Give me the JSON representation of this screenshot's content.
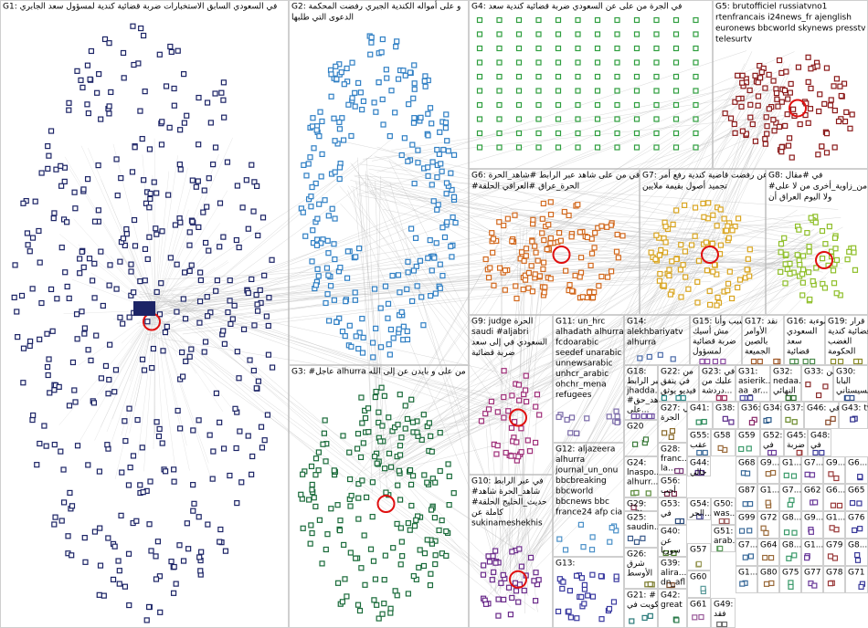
{
  "groups": [
    {
      "label": [
        "G1: في السعودي السابق الاستخبارات ضربة قضائية كندية لمسؤول سعد الجابري"
      ]
    },
    {
      "label": [
        "G2: و على أمواله الكندية الجبري رفضت المحكمة",
        "الدعوى التي طلبها"
      ]
    },
    {
      "label": [
        "G3: #عاجل alhurra في من على و بايدن عن إلى الله"
      ]
    },
    {
      "label": [
        "G4: في الجرة من على عن السعودي ضربة قضائية كندية سعد"
      ]
    },
    {
      "label": [
        "G5: brutofficiel russiatvno1",
        "rtenfrancais i24news_fr ajenglish",
        "euronews bbcworld skynews presstv",
        "telesurtv"
      ]
    },
    {
      "label": [
        "G6: في من على شاهد عبر الرابط #شاهد_الحرة",
        "#الحرة_عراق #العراقي الحلقة"
      ]
    },
    {
      "label": [
        "G7: عن رفضت قاضية كندية رفع أمر",
        "تجميد أصول بقيمة ملايين"
      ]
    },
    {
      "label": [
        "G8: في #مقال",
        "#من_زاوية_أخرى من لا على",
        "ولا اليوم العراق أن"
      ]
    },
    {
      "label": [
        "G9: judge الحرة",
        "saudi #aljabri",
        "السعودي في إلى سعد",
        "ضربة قضائية"
      ]
    },
    {
      "label": [
        "G10: في عبر الرابط",
        "#شاهد_الحرة شاهد",
        "#حديث_الخليج الحلقة",
        "كاملة عن",
        "sukinameshekhis"
      ]
    },
    {
      "label": [
        "G11: un_hrc",
        "alhadath alhurra",
        "fcdoarabic",
        "seedef unarabic",
        "unnewsarabic",
        "unhcr_arabic",
        "ohchr_mena",
        "refugees"
      ]
    },
    {
      "label": [
        "G12: aljazeera",
        "alhurra",
        "journal_un_onu",
        "bbcbreaking",
        "bbcworld",
        "bbcnews bbc",
        "france24 afp cia"
      ]
    },
    {
      "label": [
        "G13:"
      ]
    },
    {
      "label": [
        "G14:",
        "alekhbariyatv",
        "alhurra"
      ]
    },
    {
      "label": [
        "G15: سبب وأنا",
        "مش أسيك",
        "ضربة قضائية",
        "لمسؤول"
      ]
    },
    {
      "label": [
        "G17: نقد",
        "الأوامر",
        "بالصين",
        "الجميعة"
      ]
    },
    {
      "label": [
        "G16: ضوءبة",
        "السعودي",
        "سعد",
        "قضائية"
      ]
    },
    {
      "label": [
        "G19: قرار",
        "قضائية كندية",
        "الغضب",
        "الحكومة"
      ]
    },
    {
      "label": [
        "G18:",
        "عبر الرابط",
        "jhadda...",
        "#شاهد_حق",
        "على..."
      ]
    },
    {
      "label": [
        "G22: من",
        "في يتفق",
        "فيديو يوثق"
      ]
    },
    {
      "label": [
        "G23: في",
        "عليك من",
        "دردشة..."
      ]
    },
    {
      "label": [
        "G31:",
        "asierik...",
        "aa_ar..."
      ]
    },
    {
      "label": [
        "G32:",
        "nedaa...",
        "النهائي"
      ]
    },
    {
      "label": [
        "G33: من"
      ]
    },
    {
      "label": [
        "G30:",
        "البابا",
        "والسيستاني"
      ]
    },
    {
      "label": [
        "G27: في",
        "الجرة"
      ]
    },
    {
      "label": [
        "G41:"
      ]
    },
    {
      "label": [
        "G38:"
      ]
    },
    {
      "label": [
        "G36: من"
      ]
    },
    {
      "label": [
        "G34:"
      ]
    },
    {
      "label": [
        "G37: في"
      ]
    },
    {
      "label": [
        "G46: في"
      ]
    },
    {
      "label": [
        "G43: tv"
      ]
    },
    {
      "label": [
        "G20"
      ]
    },
    {
      "label": [
        "G28:",
        "franc...",
        "la..."
      ]
    },
    {
      "label": [
        "G55:",
        "عقب"
      ]
    },
    {
      "label": [
        "G58"
      ]
    },
    {
      "label": [
        "G59"
      ]
    },
    {
      "label": [
        "G52:",
        "في"
      ]
    },
    {
      "label": [
        "G45:",
        "ضربة"
      ]
    },
    {
      "label": [
        "G48:",
        "في"
      ]
    },
    {
      "label": [
        "G24:",
        "lnaspo...",
        "alhurr..."
      ]
    },
    {
      "label": [
        "G29:",
        "m3ta..."
      ]
    },
    {
      "label": [
        "G25:",
        "saudin..."
      ]
    },
    {
      "label": [
        "G26:",
        "شرق",
        "الأوسط"
      ]
    },
    {
      "label": [
        "G21: #",
        "الكويت في"
      ]
    },
    {
      "label": [
        "G44:",
        "حالي"
      ]
    },
    {
      "label": [
        "G56:",
        "أحب"
      ]
    },
    {
      "label": [
        "G53:",
        "في"
      ]
    },
    {
      "label": [
        "G40:",
        "عن",
        "سوريا"
      ]
    },
    {
      "label": [
        "G39:",
        "alira...",
        "dn_afl"
      ]
    },
    {
      "label": [
        "G42:",
        "great"
      ]
    },
    {
      "label": [
        "G54:",
        "الحر..."
      ]
    },
    {
      "label": [
        "G50:",
        "was..."
      ]
    },
    {
      "label": [
        "G51:",
        "arab..."
      ]
    },
    {
      "label": [
        "G57"
      ]
    },
    {
      "label": [
        "G60"
      ]
    },
    {
      "label": [
        "G61"
      ]
    },
    {
      "label": [
        "G49:",
        "فقد"
      ]
    },
    {
      "label": [
        "G68"
      ]
    },
    {
      "label": [
        "G9..."
      ]
    },
    {
      "label": [
        "G1..."
      ]
    },
    {
      "label": [
        "G7..."
      ]
    },
    {
      "label": [
        "G9..."
      ]
    },
    {
      "label": [
        "G6..."
      ]
    },
    {
      "label": [
        "G87"
      ]
    },
    {
      "label": [
        "G1..."
      ]
    },
    {
      "label": [
        "G7..."
      ]
    },
    {
      "label": [
        "G62"
      ]
    },
    {
      "label": [
        "G6..."
      ]
    },
    {
      "label": [
        "G65"
      ]
    },
    {
      "label": [
        "G99"
      ]
    },
    {
      "label": [
        "G72"
      ]
    },
    {
      "label": [
        "G8..."
      ]
    },
    {
      "label": [
        "G9..."
      ]
    },
    {
      "label": [
        "G1..."
      ]
    },
    {
      "label": [
        "G76"
      ]
    },
    {
      "label": [
        "G7..."
      ]
    },
    {
      "label": [
        "G64"
      ]
    },
    {
      "label": [
        "G8..."
      ]
    },
    {
      "label": [
        "G1..."
      ]
    },
    {
      "label": [
        "G79"
      ]
    },
    {
      "label": [
        "G8..."
      ]
    },
    {
      "label": [
        "G1..."
      ]
    },
    {
      "label": [
        "G80"
      ]
    },
    {
      "label": [
        "G75"
      ]
    },
    {
      "label": [
        "G77"
      ]
    },
    {
      "label": [
        "G78"
      ]
    },
    {
      "label": [
        "G71"
      ]
    }
  ]
}
